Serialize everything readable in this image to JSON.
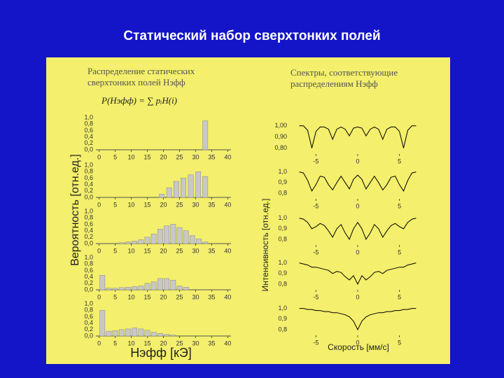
{
  "title": "Статический набор сверхтонких полей",
  "left_panel": {
    "heading": [
      "Распределение статических",
      "сверхтонких полей Hэфф"
    ],
    "formula": "P(Hэфф) = ∑ pᵢH(i)",
    "ylabel": "Вероятность [отн.ед.]",
    "xlabel": "Hэфф [кЭ]"
  },
  "right_panel": {
    "heading": [
      "Спектры, соответствующие",
      "распределениям Hэфф"
    ],
    "ylabel": "Интенсивность [отн.ед.]",
    "xlabel": "Скорость [мм/с]"
  },
  "chart_data": [
    {
      "type": "bar",
      "color": "#c8c8c8",
      "x": [
        33
      ],
      "values": [
        0.9
      ],
      "xlim": [
        -1,
        41
      ],
      "xticks": [
        0,
        5,
        10,
        15,
        20,
        25,
        30,
        35,
        40
      ],
      "ylim": [
        0,
        1
      ],
      "yticks": [
        {
          "value": 0,
          "label": "0,0"
        },
        {
          "value": 0.2,
          "label": "0,2"
        },
        {
          "value": 0.4,
          "label": "0,4"
        },
        {
          "value": 0.6,
          "label": "0,6"
        },
        {
          "value": 0.8,
          "label": "0,8"
        },
        {
          "value": 1,
          "label": "1,0"
        }
      ]
    },
    {
      "type": "bar",
      "color": "#c8c8c8",
      "x": [
        19.5,
        21.8,
        24,
        26.2,
        28.5,
        30.8,
        33
      ],
      "values": [
        0.1,
        0.3,
        0.5,
        0.6,
        0.7,
        0.8,
        0.65
      ],
      "xlim": [
        -1,
        41
      ],
      "xticks": [
        0,
        5,
        10,
        15,
        20,
        25,
        30,
        35,
        40
      ],
      "ylim": [
        0,
        1
      ],
      "yticks": [
        {
          "value": 0,
          "label": "0,0"
        },
        {
          "value": 0.2,
          "label": "0,2"
        },
        {
          "value": 0.4,
          "label": "0,4"
        },
        {
          "value": 0.6,
          "label": "0,6"
        },
        {
          "value": 0.8,
          "label": "0,8"
        },
        {
          "value": 1,
          "label": "1,0"
        }
      ]
    },
    {
      "type": "bar",
      "color": "#c8c8c8",
      "x": [
        1,
        3,
        5,
        7,
        9,
        11,
        13,
        15,
        17,
        19,
        21,
        23,
        25,
        27,
        29,
        31,
        33
      ],
      "values": [
        0,
        0,
        0,
        0.03,
        0.05,
        0.08,
        0.12,
        0.2,
        0.3,
        0.45,
        0.55,
        0.6,
        0.5,
        0.4,
        0.25,
        0.15,
        0.05
      ],
      "xlim": [
        -1,
        41
      ],
      "xticks": [
        0,
        5,
        10,
        15,
        20,
        25,
        30,
        35,
        40
      ],
      "ylim": [
        0,
        1
      ],
      "yticks": [
        {
          "value": 0,
          "label": "0,0"
        },
        {
          "value": 0.2,
          "label": "0,2"
        },
        {
          "value": 0.4,
          "label": "0,4"
        },
        {
          "value": 0.6,
          "label": "0,6"
        },
        {
          "value": 0.8,
          "label": "0,8"
        },
        {
          "value": 1,
          "label": "1,0"
        }
      ]
    },
    {
      "type": "bar",
      "color": "#c8c8c8",
      "x": [
        1,
        3,
        5,
        7,
        9,
        11,
        13,
        15,
        17,
        19,
        21,
        23,
        25,
        27,
        29,
        31,
        33
      ],
      "values": [
        0.45,
        0.05,
        0.05,
        0.07,
        0.08,
        0.1,
        0.12,
        0.2,
        0.25,
        0.35,
        0.35,
        0.3,
        0.12,
        0.08,
        0,
        0,
        0
      ],
      "xlim": [
        -1,
        41
      ],
      "xticks": [
        0,
        5,
        10,
        15,
        20,
        25,
        30,
        35,
        40
      ],
      "ylim": [
        0,
        1
      ],
      "yticks": [
        {
          "value": 0,
          "label": "0,0"
        },
        {
          "value": 0.2,
          "label": "0,2"
        },
        {
          "value": 0.4,
          "label": "0,4"
        },
        {
          "value": 0.6,
          "label": "0,6"
        },
        {
          "value": 0.8,
          "label": "0,8"
        },
        {
          "value": 1,
          "label": "1,0"
        }
      ]
    },
    {
      "type": "bar",
      "color": "#c8c8c8",
      "x": [
        1,
        3,
        5,
        7,
        9,
        11,
        13,
        15,
        17,
        19,
        21,
        23,
        25,
        27,
        29,
        31,
        33
      ],
      "values": [
        0.8,
        0.15,
        0.17,
        0.2,
        0.22,
        0.25,
        0.22,
        0.18,
        0.12,
        0.08,
        0.05,
        0.03,
        0,
        0,
        0,
        0,
        0
      ],
      "xlim": [
        -1,
        41
      ],
      "xticks": [
        0,
        5,
        10,
        15,
        20,
        25,
        30,
        35,
        40
      ],
      "ylim": [
        0,
        1
      ],
      "yticks": [
        {
          "value": 0,
          "label": "0,0"
        },
        {
          "value": 0.2,
          "label": "0,2"
        },
        {
          "value": 0.4,
          "label": "0,4"
        },
        {
          "value": 0.6,
          "label": "0,6"
        },
        {
          "value": 0.8,
          "label": "0,8"
        },
        {
          "value": 1,
          "label": "1,0"
        }
      ]
    },
    {
      "type": "line",
      "color": "#000000",
      "x": [
        -7,
        -6.5,
        -6,
        -5.5,
        -5,
        -4.5,
        -4,
        -3.5,
        -3,
        -2.5,
        -2,
        -1.5,
        -1,
        -0.5,
        0,
        0.5,
        1,
        1.5,
        2,
        2.5,
        3,
        3.5,
        4,
        4.5,
        5,
        5.5,
        6,
        6.5,
        7
      ],
      "values": [
        1.0,
        1.0,
        0.96,
        0.8,
        0.95,
        0.99,
        0.99,
        0.97,
        0.88,
        0.97,
        0.99,
        0.97,
        0.91,
        0.98,
        0.99,
        0.98,
        0.91,
        0.97,
        0.99,
        0.97,
        0.88,
        0.97,
        0.99,
        0.99,
        0.95,
        0.8,
        0.96,
        1.0,
        1.0
      ],
      "xlim": [
        -7.3,
        7.3
      ],
      "xticks": [
        -5,
        0,
        5
      ],
      "ylim": [
        0.76,
        1.03
      ],
      "yticks": [
        {
          "value": 0.8,
          "label": "0,80"
        },
        {
          "value": 0.9,
          "label": "0,90"
        },
        {
          "value": 1,
          "label": "1,00"
        }
      ]
    },
    {
      "type": "line",
      "color": "#000000",
      "x": [
        -7,
        -6.5,
        -6,
        -5.5,
        -5,
        -4.5,
        -4,
        -3.5,
        -3,
        -2.5,
        -2,
        -1.5,
        -1,
        -0.5,
        0,
        0.5,
        1,
        1.5,
        2,
        2.5,
        3,
        3.5,
        4,
        4.5,
        5,
        5.5,
        6,
        6.5,
        7
      ],
      "values": [
        1.0,
        0.99,
        0.92,
        0.82,
        0.88,
        0.96,
        0.95,
        0.88,
        0.83,
        0.9,
        0.96,
        0.9,
        0.84,
        0.93,
        0.97,
        0.93,
        0.84,
        0.9,
        0.96,
        0.9,
        0.83,
        0.88,
        0.95,
        0.96,
        0.88,
        0.82,
        0.92,
        0.99,
        1.0
      ],
      "xlim": [
        -7.3,
        7.3
      ],
      "xticks": [
        -5,
        0,
        5
      ],
      "ylim": [
        0.76,
        1.05
      ],
      "yticks": [
        {
          "value": 0.8,
          "label": "0,8"
        },
        {
          "value": 0.9,
          "label": "0,9"
        },
        {
          "value": 1,
          "label": "1,0"
        }
      ]
    },
    {
      "type": "line",
      "color": "#000000",
      "x": [
        -7,
        -6.5,
        -6,
        -5.5,
        -5,
        -4.5,
        -4,
        -3.5,
        -3,
        -2.5,
        -2,
        -1.5,
        -1,
        -0.5,
        0,
        0.5,
        1,
        1.5,
        2,
        2.5,
        3,
        3.5,
        4,
        4.5,
        5,
        5.5,
        6,
        6.5,
        7
      ],
      "values": [
        1.0,
        0.99,
        0.96,
        0.9,
        0.92,
        0.95,
        0.93,
        0.88,
        0.82,
        0.9,
        0.94,
        0.86,
        0.8,
        0.9,
        0.96,
        0.9,
        0.8,
        0.86,
        0.94,
        0.9,
        0.82,
        0.88,
        0.93,
        0.95,
        0.92,
        0.9,
        0.96,
        0.99,
        1.0
      ],
      "xlim": [
        -7.3,
        7.3
      ],
      "xticks": [
        -5,
        0,
        5
      ],
      "ylim": [
        0.76,
        1.05
      ],
      "yticks": [
        {
          "value": 0.8,
          "label": "0,8"
        },
        {
          "value": 0.9,
          "label": "0,9"
        },
        {
          "value": 1,
          "label": "1,0"
        }
      ]
    },
    {
      "type": "line",
      "color": "#000000",
      "x": [
        -7,
        -6.5,
        -6,
        -5.5,
        -5,
        -4.5,
        -4,
        -3.5,
        -3,
        -2.5,
        -2,
        -1.5,
        -1,
        -0.5,
        0,
        0.5,
        1,
        1.5,
        2,
        2.5,
        3,
        3.5,
        4,
        4.5,
        5,
        5.5,
        6,
        6.5,
        7
      ],
      "values": [
        1.0,
        0.99,
        0.98,
        0.96,
        0.96,
        0.95,
        0.94,
        0.93,
        0.9,
        0.92,
        0.91,
        0.87,
        0.84,
        0.88,
        0.8,
        0.88,
        0.84,
        0.87,
        0.91,
        0.92,
        0.9,
        0.93,
        0.94,
        0.95,
        0.96,
        0.96,
        0.98,
        0.99,
        1.0
      ],
      "xlim": [
        -7.3,
        7.3
      ],
      "xticks": [
        -5,
        0,
        5
      ],
      "ylim": [
        0.76,
        1.05
      ],
      "yticks": [
        {
          "value": 0.8,
          "label": "0,8"
        },
        {
          "value": 0.9,
          "label": "0,9"
        },
        {
          "value": 1,
          "label": "1,0"
        }
      ]
    },
    {
      "type": "line",
      "color": "#000000",
      "x": [
        -7,
        -6.5,
        -6,
        -5.5,
        -5,
        -4.5,
        -4,
        -3.5,
        -3,
        -2.5,
        -2,
        -1.5,
        -1,
        -0.5,
        0,
        0.5,
        1,
        1.5,
        2,
        2.5,
        3,
        3.5,
        4,
        4.5,
        5,
        5.5,
        6,
        6.5,
        7
      ],
      "values": [
        1.0,
        1.0,
        0.99,
        0.99,
        0.98,
        0.98,
        0.97,
        0.97,
        0.96,
        0.96,
        0.95,
        0.94,
        0.92,
        0.88,
        0.8,
        0.88,
        0.92,
        0.94,
        0.95,
        0.96,
        0.96,
        0.97,
        0.97,
        0.98,
        0.98,
        0.99,
        0.99,
        1.0,
        1.0
      ],
      "xlim": [
        -7.3,
        7.3
      ],
      "xticks": [
        -5,
        0,
        5
      ],
      "ylim": [
        0.76,
        1.05
      ],
      "yticks": [
        {
          "value": 0.8,
          "label": "0,8"
        },
        {
          "value": 0.9,
          "label": "0,9"
        },
        {
          "value": 1,
          "label": "1,0"
        }
      ]
    }
  ]
}
